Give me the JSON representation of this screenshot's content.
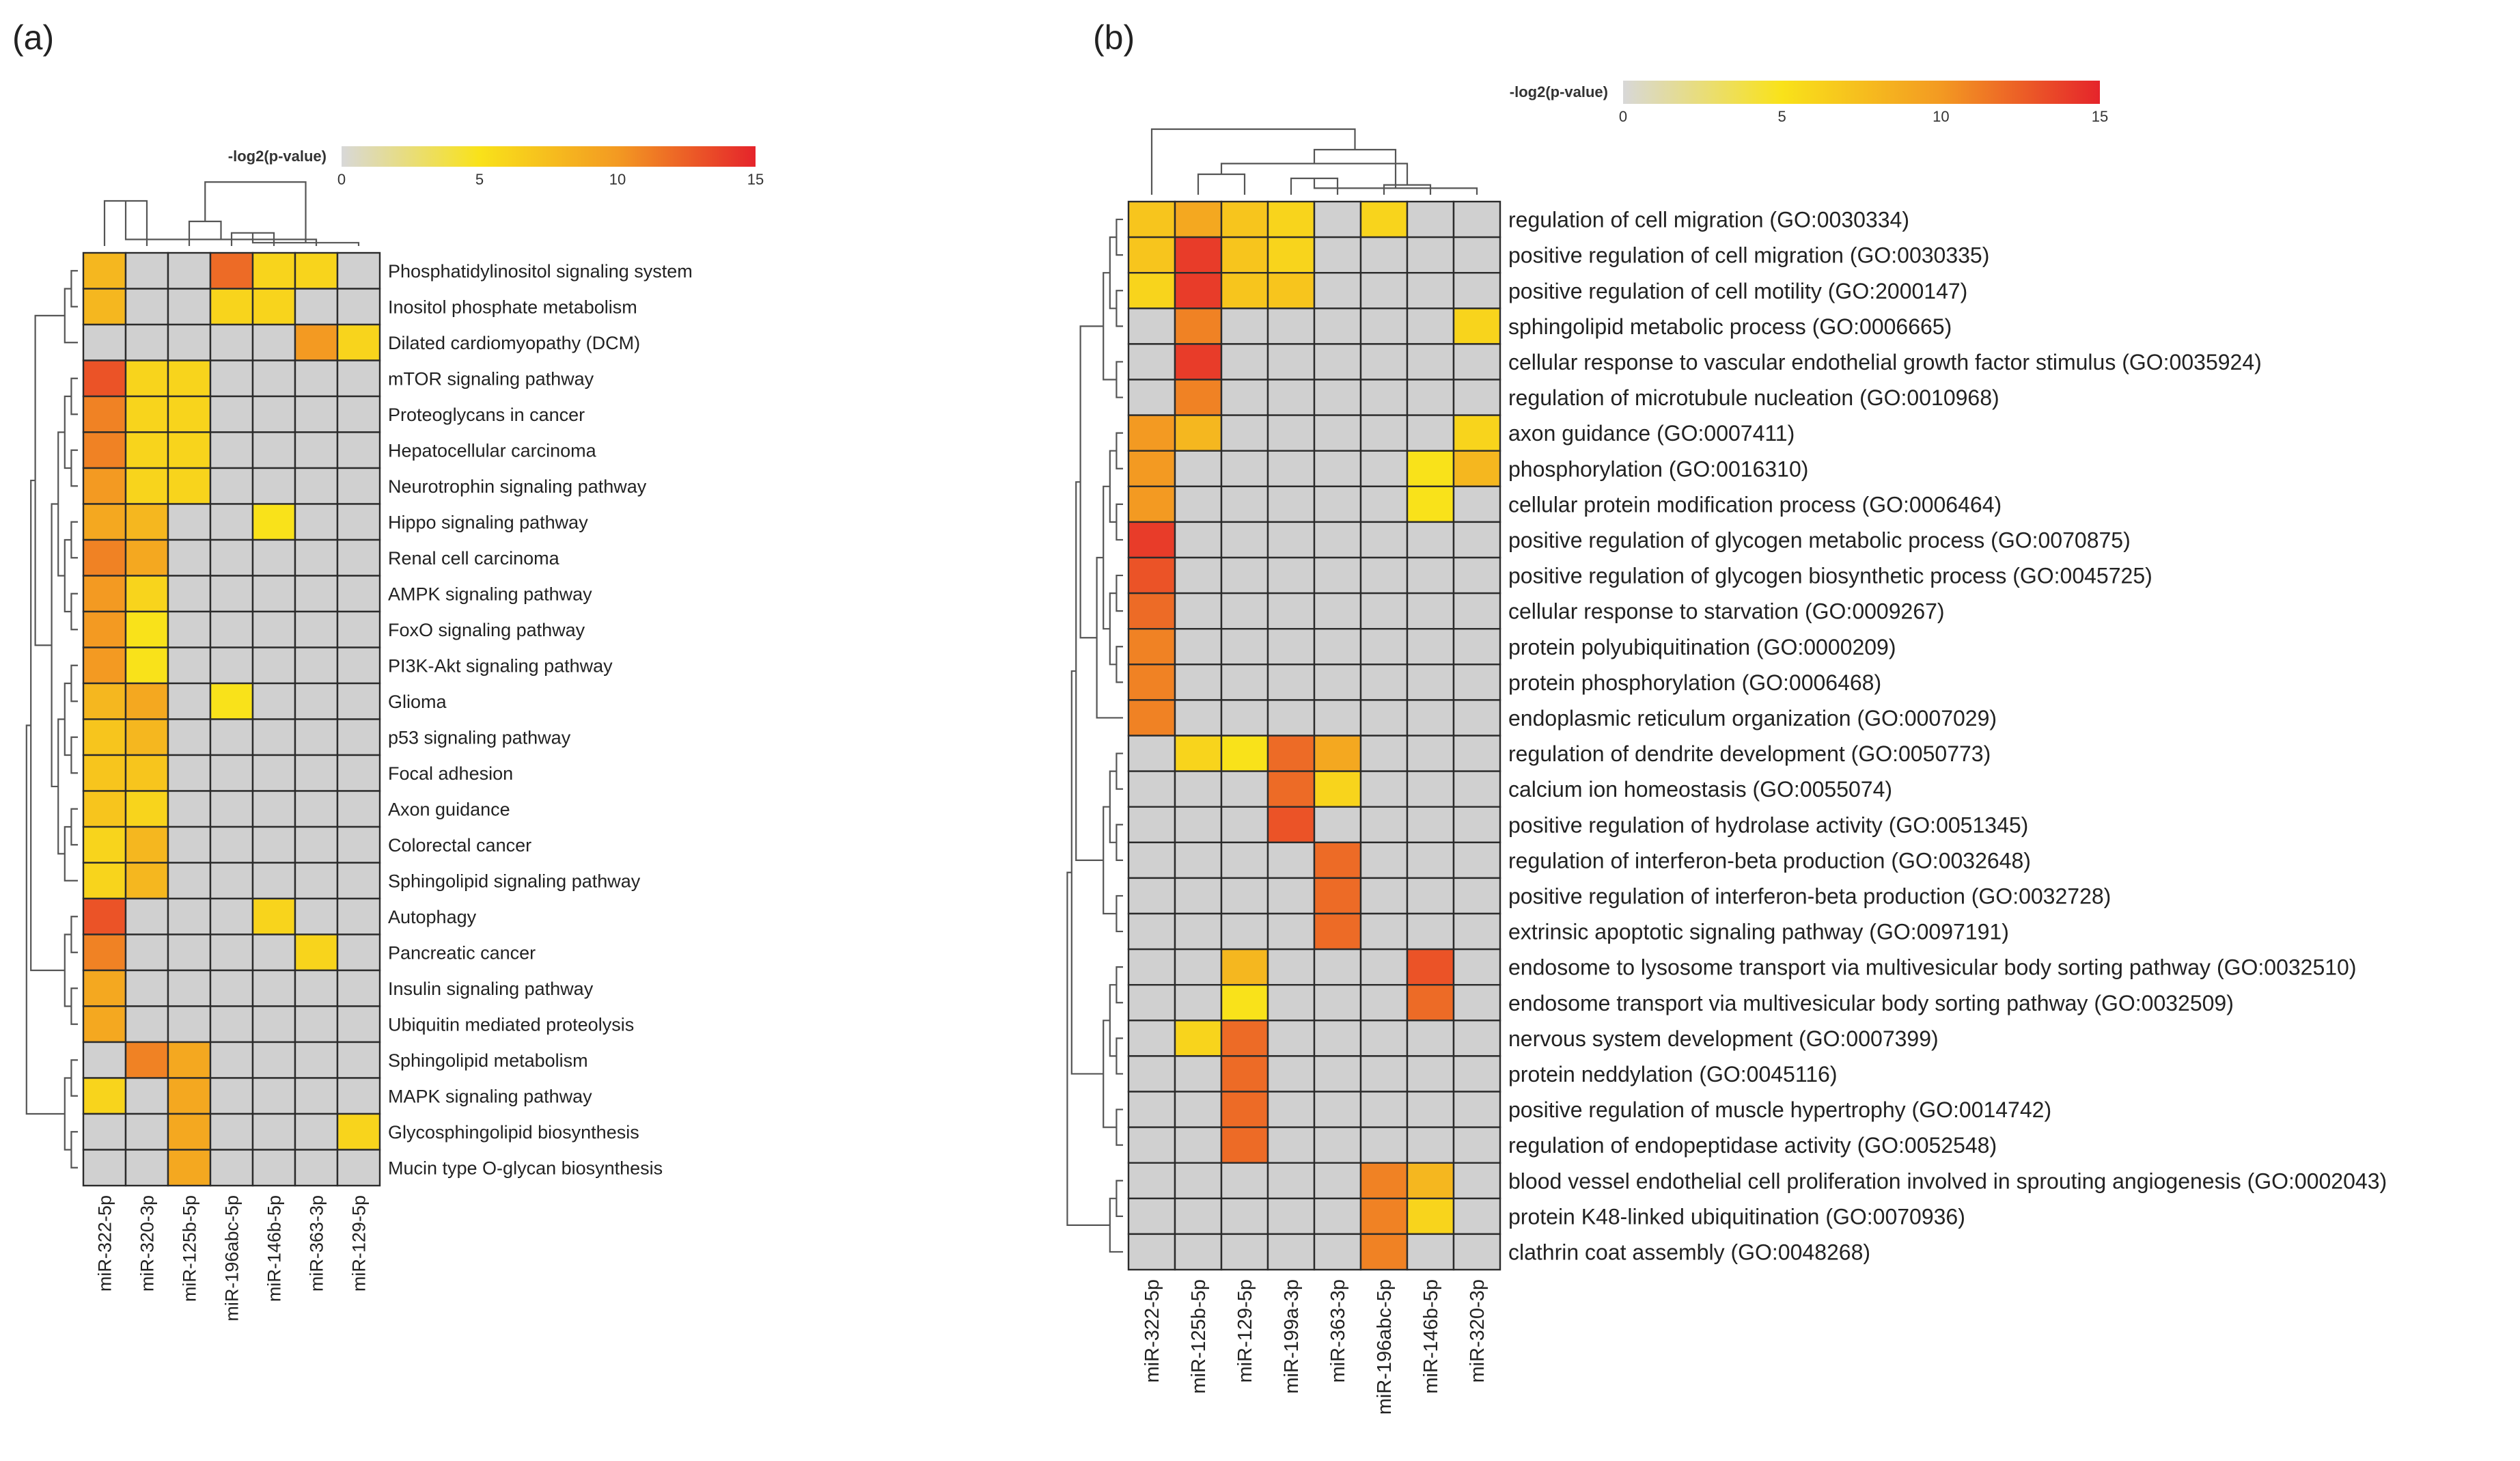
{
  "chart_data": [
    {
      "type": "heatmap",
      "panel_label": "(a)",
      "legend": {
        "title": "-log2(p-value)",
        "ticks": [
          "0",
          "5",
          "10",
          "15"
        ],
        "range": [
          0,
          15
        ]
      },
      "columns": [
        "miR-322-5p",
        "miR-320-3p",
        "miR-125b-5p",
        "miR-196abc-5p",
        "miR-146b-5p",
        "miR-363-3p",
        "miR-129-5p"
      ],
      "rows": [
        "Phosphatidylinositol signaling system",
        "Inositol phosphate metabolism",
        "Dilated cardiomyopathy (DCM)",
        "mTOR signaling pathway",
        "Proteoglycans in cancer",
        "Hepatocellular carcinoma",
        "Neurotrophin signaling pathway",
        "Hippo signaling pathway",
        "Renal cell carcinoma",
        "AMPK signaling pathway",
        "FoxO signaling pathway",
        "PI3K-Akt signaling pathway",
        "Glioma",
        "p53 signaling pathway",
        "Focal adhesion",
        "Axon guidance",
        "Colorectal cancer",
        "Sphingolipid signaling pathway",
        "Autophagy",
        "Pancreatic cancer",
        "Insulin signaling pathway",
        "Ubiquitin mediated proteolysis",
        "Sphingolipid metabolism",
        "MAPK signaling pathway",
        "Glycosphingolipid biosynthesis",
        "Mucin type O-glycan biosynthesis"
      ],
      "values": [
        [
          8,
          0,
          0,
          12,
          6,
          6,
          0
        ],
        [
          8,
          0,
          0,
          6,
          6,
          0,
          0
        ],
        [
          0,
          0,
          0,
          0,
          0,
          10,
          6
        ],
        [
          13,
          6,
          6,
          0,
          0,
          0,
          0
        ],
        [
          11,
          6,
          6,
          0,
          0,
          0,
          0
        ],
        [
          11,
          6,
          6,
          0,
          0,
          0,
          0
        ],
        [
          10,
          6,
          6,
          0,
          0,
          0,
          0
        ],
        [
          9,
          8,
          0,
          0,
          5,
          0,
          0
        ],
        [
          11,
          9,
          0,
          0,
          0,
          0,
          0
        ],
        [
          10,
          6,
          0,
          0,
          0,
          0,
          0
        ],
        [
          10,
          5,
          0,
          0,
          0,
          0,
          0
        ],
        [
          10,
          5,
          0,
          0,
          0,
          0,
          0
        ],
        [
          8,
          9,
          0,
          5,
          0,
          0,
          0
        ],
        [
          7,
          8,
          0,
          0,
          0,
          0,
          0
        ],
        [
          7,
          7,
          0,
          0,
          0,
          0,
          0
        ],
        [
          7,
          6,
          0,
          0,
          0,
          0,
          0
        ],
        [
          6,
          8,
          0,
          0,
          0,
          0,
          0
        ],
        [
          6,
          8,
          0,
          0,
          0,
          0,
          0
        ],
        [
          13,
          0,
          0,
          0,
          6,
          0,
          0
        ],
        [
          11,
          0,
          0,
          0,
          0,
          6,
          0
        ],
        [
          9,
          0,
          0,
          0,
          0,
          0,
          0
        ],
        [
          9,
          0,
          0,
          0,
          0,
          0,
          0
        ],
        [
          0,
          11,
          9,
          0,
          0,
          0,
          0
        ],
        [
          6,
          0,
          9,
          0,
          0,
          0,
          0
        ],
        [
          0,
          0,
          9,
          0,
          0,
          0,
          6
        ],
        [
          0,
          0,
          9,
          0,
          0,
          0,
          0
        ]
      ]
    },
    {
      "type": "heatmap",
      "panel_label": "(b)",
      "legend": {
        "title": "-log2(p-value)",
        "ticks": [
          "0",
          "5",
          "10",
          "15"
        ],
        "range": [
          0,
          15
        ]
      },
      "columns": [
        "miR-322-5p",
        "miR-125b-5p",
        "miR-129-5p",
        "miR-199a-3p",
        "miR-363-3p",
        "miR-196abc-5p",
        "miR-146b-5p",
        "miR-320-3p"
      ],
      "rows": [
        "regulation of cell migration (GO:0030334)",
        "positive regulation of cell migration (GO:0030335)",
        "positive regulation of cell motility (GO:2000147)",
        "sphingolipid metabolic process (GO:0006665)",
        "cellular response to vascular endothelial growth factor stimulus (GO:0035924)",
        "regulation of microtubule nucleation (GO:0010968)",
        "axon guidance (GO:0007411)",
        "phosphorylation (GO:0016310)",
        "cellular protein modification process (GO:0006464)",
        "positive regulation of glycogen metabolic process (GO:0070875)",
        "positive regulation of glycogen biosynthetic process (GO:0045725)",
        "cellular response to starvation (GO:0009267)",
        "protein polyubiquitination (GO:0000209)",
        "protein phosphorylation (GO:0006468)",
        "endoplasmic reticulum organization (GO:0007029)",
        "regulation of dendrite development (GO:0050773)",
        "calcium ion homeostasis (GO:0055074)",
        "positive regulation of hydrolase activity (GO:0051345)",
        "regulation of interferon-beta production (GO:0032648)",
        "positive regulation of interferon-beta production (GO:0032728)",
        "extrinsic apoptotic signaling pathway (GO:0097191)",
        "endosome to lysosome transport via multivesicular body sorting pathway (GO:0032510)",
        "endosome transport via multivesicular body sorting pathway (GO:0032509)",
        "nervous system development (GO:0007399)",
        "protein neddylation (GO:0045116)",
        "positive regulation of muscle hypertrophy (GO:0014742)",
        "regulation of endopeptidase activity (GO:0052548)",
        "blood vessel endothelial cell proliferation involved in sprouting angiogenesis (GO:0002043)",
        "protein K48-linked ubiquitination (GO:0070936)",
        "clathrin coat assembly (GO:0048268)"
      ],
      "values": [
        [
          7,
          9,
          7,
          6,
          0,
          6,
          0,
          0
        ],
        [
          7,
          14,
          7,
          6,
          0,
          0,
          0,
          0
        ],
        [
          6,
          14,
          7,
          7,
          0,
          0,
          0,
          0
        ],
        [
          0,
          11,
          0,
          0,
          0,
          0,
          0,
          6
        ],
        [
          0,
          14,
          0,
          0,
          0,
          0,
          0,
          0
        ],
        [
          0,
          11,
          0,
          0,
          0,
          0,
          0,
          0
        ],
        [
          10,
          8,
          0,
          0,
          0,
          0,
          0,
          6
        ],
        [
          10,
          0,
          0,
          0,
          0,
          0,
          5,
          8
        ],
        [
          10,
          0,
          0,
          0,
          0,
          0,
          5,
          0
        ],
        [
          14,
          0,
          0,
          0,
          0,
          0,
          0,
          0
        ],
        [
          13,
          0,
          0,
          0,
          0,
          0,
          0,
          0
        ],
        [
          12,
          0,
          0,
          0,
          0,
          0,
          0,
          0
        ],
        [
          11,
          0,
          0,
          0,
          0,
          0,
          0,
          0
        ],
        [
          11,
          0,
          0,
          0,
          0,
          0,
          0,
          0
        ],
        [
          11,
          0,
          0,
          0,
          0,
          0,
          0,
          0
        ],
        [
          0,
          6,
          5,
          12,
          9,
          0,
          0,
          0
        ],
        [
          0,
          0,
          0,
          12,
          6,
          0,
          0,
          0
        ],
        [
          0,
          0,
          0,
          13,
          0,
          0,
          0,
          0
        ],
        [
          0,
          0,
          0,
          0,
          12,
          0,
          0,
          0
        ],
        [
          0,
          0,
          0,
          0,
          12,
          0,
          0,
          0
        ],
        [
          0,
          0,
          0,
          0,
          12,
          0,
          0,
          0
        ],
        [
          0,
          0,
          8,
          0,
          0,
          0,
          13,
          0
        ],
        [
          0,
          0,
          5,
          0,
          0,
          0,
          12,
          0
        ],
        [
          0,
          6,
          12,
          0,
          0,
          0,
          0,
          0
        ],
        [
          0,
          0,
          12,
          0,
          0,
          0,
          0,
          0
        ],
        [
          0,
          0,
          12,
          0,
          0,
          0,
          0,
          0
        ],
        [
          0,
          0,
          12,
          0,
          0,
          0,
          0,
          0
        ],
        [
          0,
          0,
          0,
          0,
          0,
          11,
          8,
          0
        ],
        [
          0,
          0,
          0,
          0,
          0,
          11,
          6,
          0
        ],
        [
          0,
          0,
          0,
          0,
          0,
          11,
          0,
          0
        ]
      ]
    }
  ]
}
